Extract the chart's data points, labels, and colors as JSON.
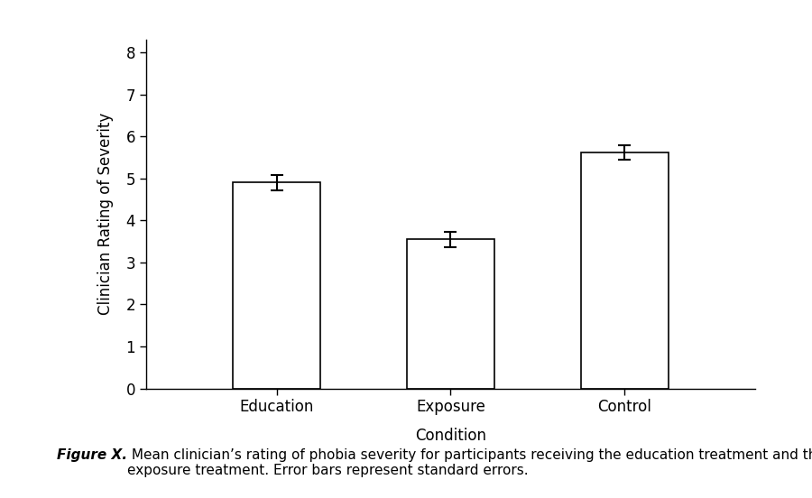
{
  "categories": [
    "Education",
    "Exposure",
    "Control"
  ],
  "values": [
    4.9,
    3.55,
    5.62
  ],
  "errors": [
    0.18,
    0.18,
    0.18
  ],
  "bar_color": "#ffffff",
  "bar_edgecolor": "#000000",
  "bar_linewidth": 1.2,
  "bar_width": 0.5,
  "xlabel": "Condition",
  "ylabel": "Clinician Rating of Severity",
  "ylim": [
    0,
    8.3
  ],
  "yticks": [
    0,
    1,
    2,
    3,
    4,
    5,
    6,
    7,
    8
  ],
  "xlim": [
    -0.75,
    2.75
  ],
  "error_capsize": 5,
  "error_linewidth": 1.5,
  "error_color": "#000000",
  "xlabel_fontsize": 12,
  "ylabel_fontsize": 12,
  "tick_fontsize": 12,
  "caption_bold": "Figure X.",
  "caption_rest": " Mean clinician’s rating of phobia severity for participants receiving the education treatment and the\nexposure treatment. Error bars represent standard errors.",
  "caption_fontsize": 11,
  "background_color": "#ffffff",
  "figure_width": 9.0,
  "figure_height": 5.52
}
